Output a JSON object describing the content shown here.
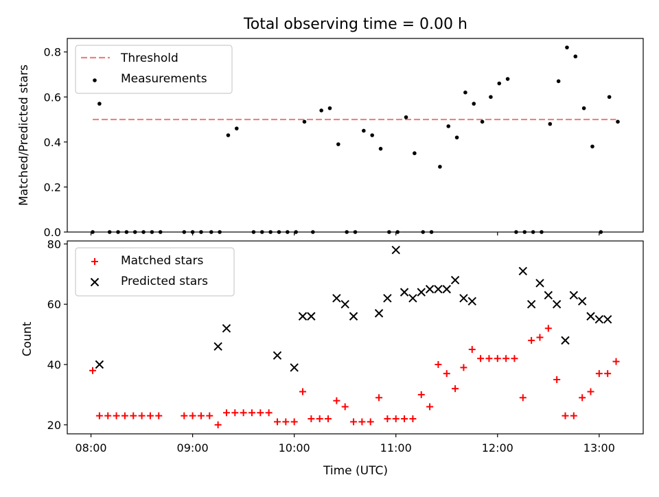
{
  "chart_data": [
    {
      "type": "scatter",
      "title": "Total observing time = 0.00 h",
      "ylabel": "Matched/Predicted stars",
      "xlabel": "",
      "xlim": [
        "07:46",
        "13:26"
      ],
      "ylim": [
        0,
        0.86
      ],
      "yticks": [
        "0.0",
        "0.2",
        "0.4",
        "0.6",
        "0.8"
      ],
      "xticks": [
        "08:00",
        "09:00",
        "10:00",
        "11:00",
        "12:00",
        "13:00"
      ],
      "show_xticklabels": false,
      "grid": false,
      "legend": "upper-left",
      "threshold": {
        "name": "Threshold",
        "value": 0.5,
        "x_range": [
          "08:01",
          "13:10"
        ],
        "color": "#f08080",
        "style": "dashed"
      },
      "series": [
        {
          "name": "Measurements",
          "marker": "dot",
          "color": "#000000",
          "x": [
            "08:01",
            "08:05",
            "08:11",
            "08:16",
            "08:21",
            "08:26",
            "08:31",
            "08:36",
            "08:41",
            "08:55",
            "09:00",
            "09:05",
            "09:11",
            "09:16",
            "09:21",
            "09:26",
            "09:36",
            "09:41",
            "09:46",
            "09:51",
            "09:56",
            "10:01",
            "10:06",
            "10:11",
            "10:16",
            "10:21",
            "10:26",
            "10:31",
            "10:36",
            "10:41",
            "10:46",
            "10:51",
            "10:56",
            "11:01",
            "11:06",
            "11:11",
            "11:16",
            "11:21",
            "11:26",
            "11:31",
            "11:36",
            "11:41",
            "11:46",
            "11:51",
            "11:56",
            "12:01",
            "12:06",
            "12:11",
            "12:16",
            "12:21",
            "12:26",
            "12:31",
            "12:36",
            "12:41",
            "12:46",
            "12:51",
            "12:56",
            "13:01",
            "13:06",
            "13:11"
          ],
          "y": [
            0,
            0.57,
            0,
            0,
            0,
            0,
            0,
            0,
            0,
            0,
            0,
            0,
            0,
            0,
            0.43,
            0.46,
            0,
            0,
            0,
            0,
            0,
            0,
            0.49,
            0,
            0.54,
            0.55,
            0.39,
            0,
            0,
            0.45,
            0.43,
            0.37,
            0,
            0,
            0.51,
            0.35,
            0,
            0,
            0.29,
            0.47,
            0.42,
            0.62,
            0.57,
            0.49,
            0.6,
            0.66,
            0.68,
            0,
            0,
            0,
            0,
            0.48,
            0.67,
            0.82,
            0.78,
            0.55,
            0.38,
            0,
            0.6,
            0.49
          ]
        }
      ]
    },
    {
      "type": "scatter",
      "title": "",
      "xlabel": "Time (UTC)",
      "ylabel": "Count",
      "xlim": [
        "07:46",
        "13:26"
      ],
      "ylim": [
        17,
        81
      ],
      "yticks": [
        "20",
        "40",
        "60",
        "80"
      ],
      "xticks": [
        "08:00",
        "09:00",
        "10:00",
        "11:00",
        "12:00",
        "13:00"
      ],
      "grid": false,
      "legend": "upper-left",
      "series": [
        {
          "name": "Matched stars",
          "marker": "plus",
          "color": "#ff0000",
          "x": [
            "08:01",
            "08:05",
            "08:10",
            "08:15",
            "08:20",
            "08:25",
            "08:30",
            "08:35",
            "08:40",
            "08:55",
            "09:00",
            "09:05",
            "09:10",
            "09:15",
            "09:20",
            "09:25",
            "09:30",
            "09:35",
            "09:40",
            "09:45",
            "09:50",
            "09:55",
            "10:00",
            "10:05",
            "10:10",
            "10:15",
            "10:20",
            "10:25",
            "10:30",
            "10:35",
            "10:40",
            "10:45",
            "10:50",
            "10:55",
            "11:00",
            "11:05",
            "11:10",
            "11:15",
            "11:20",
            "11:25",
            "11:30",
            "11:35",
            "11:40",
            "11:45",
            "11:50",
            "11:55",
            "12:00",
            "12:05",
            "12:10",
            "12:15",
            "12:20",
            "12:25",
            "12:30",
            "12:35",
            "12:40",
            "12:45",
            "12:50",
            "12:55",
            "13:00",
            "13:05",
            "13:10"
          ],
          "y": [
            38,
            23,
            23,
            23,
            23,
            23,
            23,
            23,
            23,
            23,
            23,
            23,
            23,
            20,
            24,
            24,
            24,
            24,
            24,
            24,
            21,
            21,
            21,
            31,
            22,
            22,
            22,
            28,
            26,
            21,
            21,
            21,
            29,
            22,
            22,
            22,
            22,
            30,
            26,
            40,
            37,
            32,
            39,
            45,
            42,
            42,
            42,
            42,
            42,
            29,
            48,
            49,
            52,
            35,
            23,
            23,
            29,
            31,
            37,
            37,
            41
          ]
        },
        {
          "name": "Predicted stars",
          "marker": "x",
          "color": "#000000",
          "x": [
            "08:05",
            "09:15",
            "09:20",
            "09:50",
            "10:00",
            "10:05",
            "10:10",
            "10:25",
            "10:30",
            "10:35",
            "10:50",
            "10:55",
            "11:00",
            "11:05",
            "11:10",
            "11:15",
            "11:20",
            "11:25",
            "11:30",
            "11:35",
            "11:40",
            "11:45",
            "12:15",
            "12:20",
            "12:25",
            "12:30",
            "12:35",
            "12:40",
            "12:45",
            "12:50",
            "12:55",
            "13:00",
            "13:05"
          ],
          "y": [
            40,
            46,
            52,
            43,
            39,
            56,
            56,
            62,
            60,
            56,
            57,
            62,
            78,
            64,
            62,
            64,
            65,
            65,
            65,
            68,
            62,
            61,
            71,
            60,
            67,
            63,
            60,
            48,
            63,
            61,
            56,
            55,
            55
          ]
        }
      ]
    }
  ]
}
